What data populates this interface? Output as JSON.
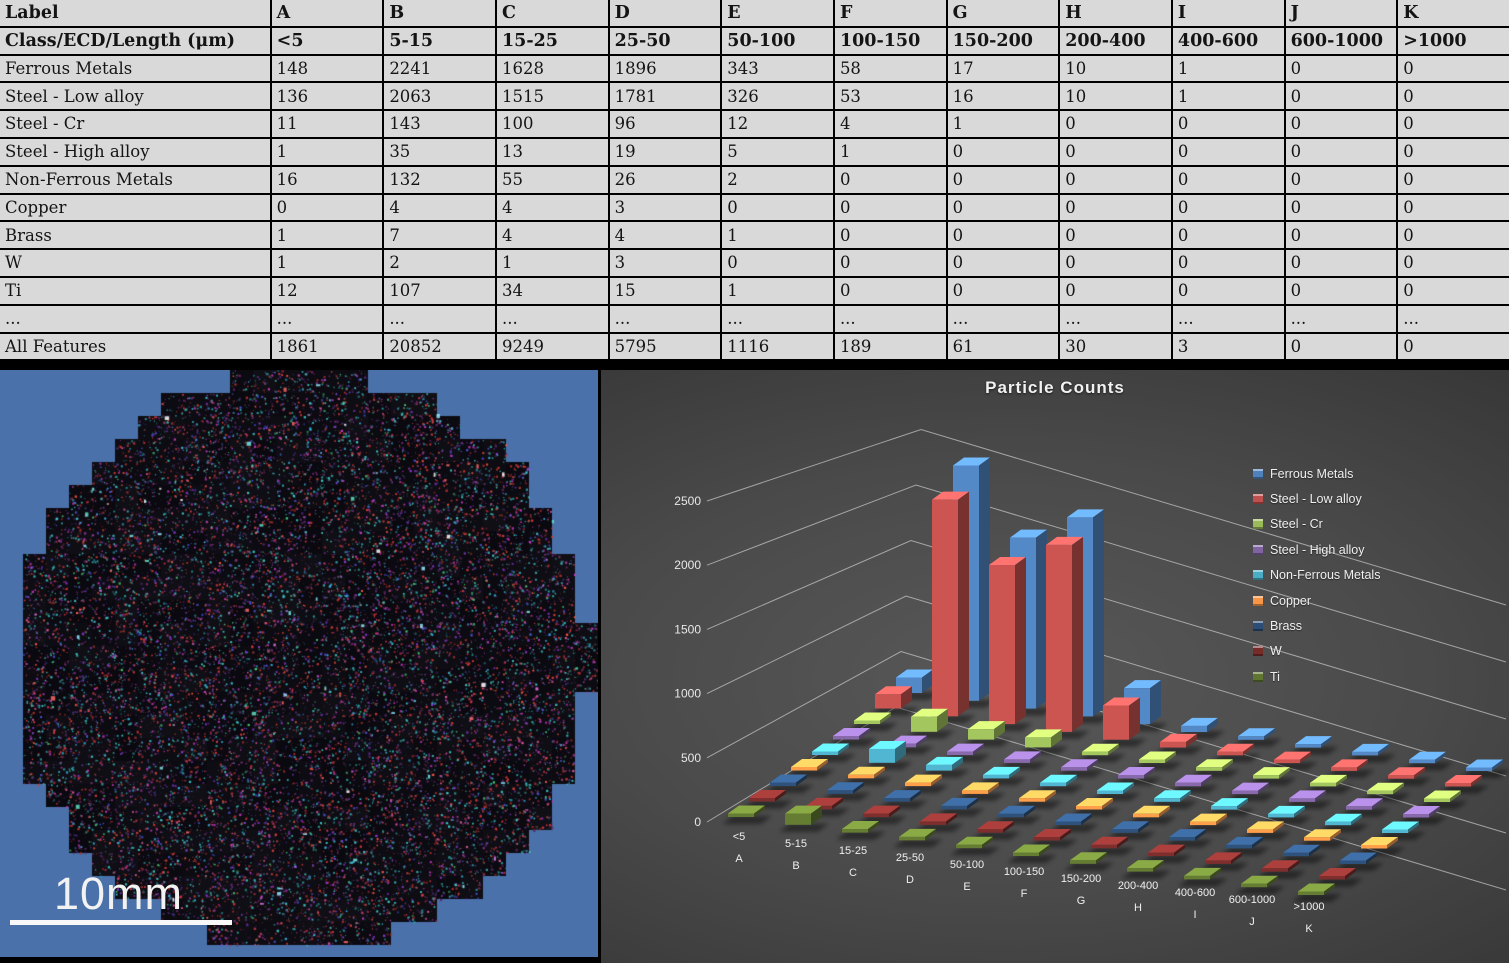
{
  "table": {
    "header": [
      "Label",
      "A",
      "B",
      "C",
      "D",
      "E",
      "F",
      "G",
      "H",
      "I",
      "J",
      "K"
    ],
    "subheader": [
      "Class/ECD/Length (μm)",
      "<5",
      "5-15",
      "15-25",
      "25-50",
      "50-100",
      "100-150",
      "150-200",
      "200-400",
      "400-600",
      "600-1000",
      ">1000"
    ],
    "rows": [
      [
        "Ferrous Metals",
        148,
        2241,
        1628,
        1896,
        343,
        58,
        17,
        10,
        1,
        0,
        0
      ],
      [
        "Steel - Low alloy",
        136,
        2063,
        1515,
        1781,
        326,
        53,
        16,
        10,
        1,
        0,
        0
      ],
      [
        "Steel - Cr",
        11,
        143,
        100,
        96,
        12,
        4,
        1,
        0,
        0,
        0,
        0
      ],
      [
        "Steel - High alloy",
        1,
        35,
        13,
        19,
        5,
        1,
        0,
        0,
        0,
        0,
        0
      ],
      [
        "Non-Ferrous Metals",
        16,
        132,
        55,
        26,
        2,
        0,
        0,
        0,
        0,
        0,
        0
      ],
      [
        "Copper",
        0,
        4,
        4,
        3,
        0,
        0,
        0,
        0,
        0,
        0,
        0
      ],
      [
        "Brass",
        1,
        7,
        4,
        4,
        1,
        0,
        0,
        0,
        0,
        0,
        0
      ],
      [
        "W",
        1,
        2,
        1,
        3,
        0,
        0,
        0,
        0,
        0,
        0,
        0
      ],
      [
        "Ti",
        12,
        107,
        34,
        15,
        1,
        0,
        0,
        0,
        0,
        0,
        0
      ],
      [
        "...",
        "...",
        "...",
        "...",
        "...",
        "...",
        "...",
        "...",
        "...",
        "...",
        "...",
        "..."
      ],
      [
        "All Features",
        1861,
        20852,
        9249,
        5795,
        1116,
        189,
        61,
        30,
        3,
        0,
        0
      ]
    ]
  },
  "micrograph": {
    "scale_label": "10mm",
    "background_color": "#4a71a9",
    "sample_base_color": "#0e0c12",
    "speckle_colors": [
      "#d63a3a",
      "#ff5a4a",
      "#a8322e",
      "#3ec9c9",
      "#2a9da0",
      "#39b7e8",
      "#c43ac0",
      "#8a3ad6",
      "#4a52d6",
      "#e05a9a",
      "#48c878",
      "#5a2a6a"
    ]
  },
  "chart_data": {
    "type": "bar",
    "projection": "3d",
    "title": "Particle Counts",
    "categories": [
      "<5",
      "5-15",
      "15-25",
      "25-50",
      "50-100",
      "100-150",
      "150-200",
      "200-400",
      "400-600",
      "600-1000",
      ">1000"
    ],
    "category_letters": [
      "A",
      "B",
      "C",
      "D",
      "E",
      "F",
      "G",
      "H",
      "I",
      "J",
      "K"
    ],
    "series": [
      {
        "name": "Ferrous Metals",
        "color": "#4F81BD",
        "values": [
          148,
          2241,
          1628,
          1896,
          343,
          58,
          17,
          10,
          1,
          0,
          0
        ]
      },
      {
        "name": "Steel - Low alloy",
        "color": "#C0504D",
        "values": [
          136,
          2063,
          1515,
          1781,
          326,
          53,
          16,
          10,
          1,
          0,
          0
        ]
      },
      {
        "name": "Steel - Cr",
        "color": "#9BBB59",
        "values": [
          11,
          143,
          100,
          96,
          12,
          4,
          1,
          0,
          0,
          0,
          0
        ]
      },
      {
        "name": "Steel - High alloy",
        "color": "#8064A2",
        "values": [
          1,
          35,
          13,
          19,
          5,
          1,
          0,
          0,
          0,
          0,
          0
        ]
      },
      {
        "name": "Non-Ferrous Metals",
        "color": "#4BACC6",
        "values": [
          16,
          132,
          55,
          26,
          2,
          0,
          0,
          0,
          0,
          0,
          0
        ]
      },
      {
        "name": "Copper",
        "color": "#F79646",
        "values": [
          0,
          4,
          4,
          3,
          0,
          0,
          0,
          0,
          0,
          0,
          0
        ]
      },
      {
        "name": "Brass",
        "color": "#2C4D75",
        "values": [
          1,
          7,
          4,
          4,
          1,
          0,
          0,
          0,
          0,
          0,
          0
        ]
      },
      {
        "name": "W",
        "color": "#772C2A",
        "values": [
          1,
          2,
          1,
          3,
          0,
          0,
          0,
          0,
          0,
          0,
          0
        ]
      },
      {
        "name": "Ti",
        "color": "#5F7530",
        "values": [
          12,
          107,
          34,
          15,
          1,
          0,
          0,
          0,
          0,
          0,
          0
        ]
      }
    ],
    "ylim": [
      0,
      2500
    ],
    "yticks": [
      0,
      500,
      1000,
      1500,
      2000,
      2500
    ],
    "legend_position": "right",
    "grid": true
  }
}
